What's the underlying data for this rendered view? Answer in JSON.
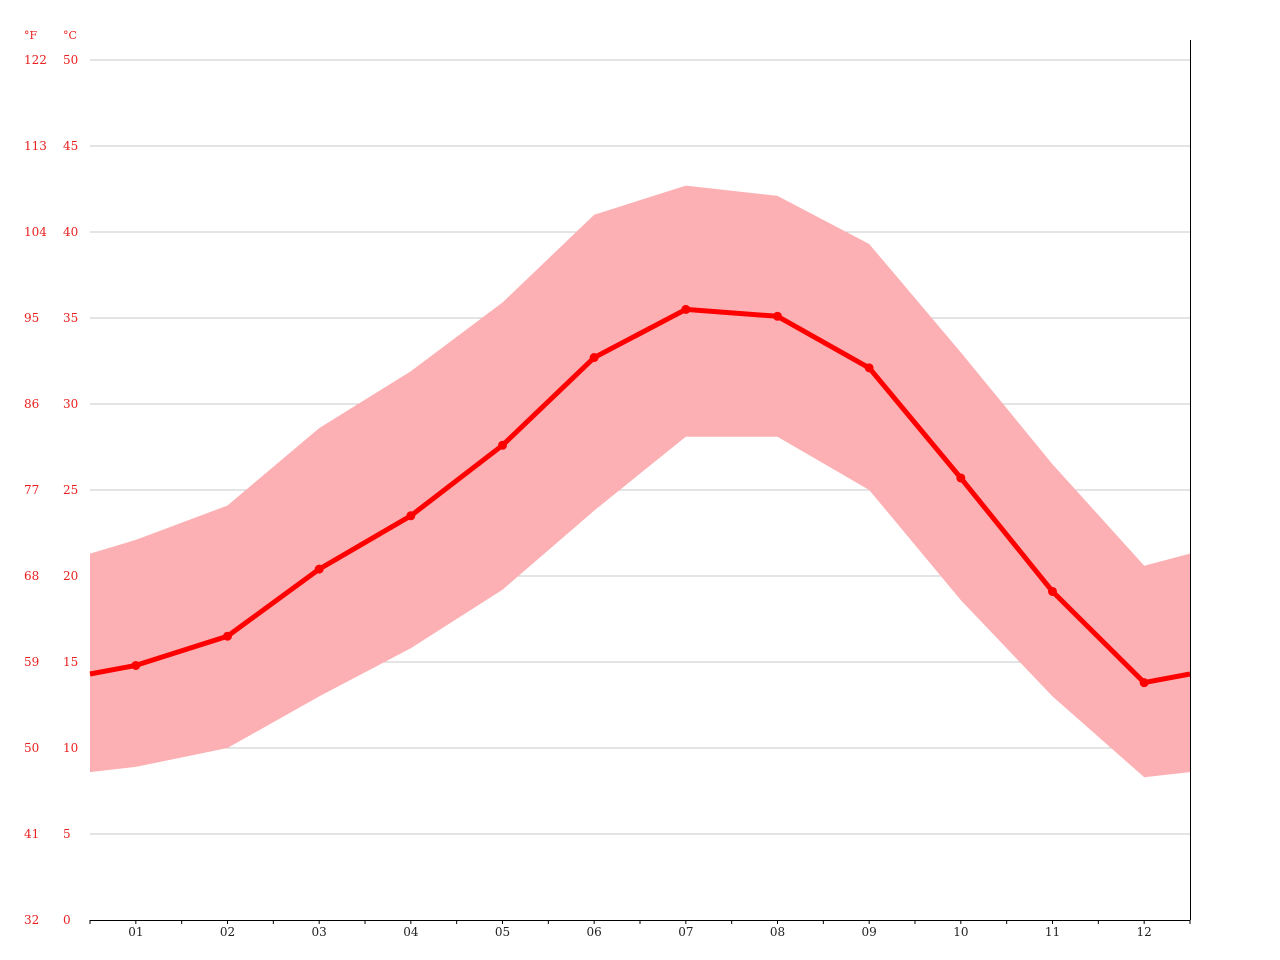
{
  "chart_data": {
    "type": "area",
    "title": "",
    "xlabel": "",
    "ylabel": "",
    "units": {
      "fahrenheit_label": "°F",
      "celsius_label": "°C"
    },
    "categories": [
      "01",
      "02",
      "03",
      "04",
      "05",
      "06",
      "07",
      "08",
      "09",
      "10",
      "11",
      "12"
    ],
    "y_ticks_celsius": [
      "0",
      "5",
      "10",
      "15",
      "20",
      "25",
      "30",
      "35",
      "40",
      "45",
      "50"
    ],
    "y_ticks_fahrenheit": [
      "32",
      "41",
      "50",
      "59",
      "68",
      "77",
      "86",
      "95",
      "104",
      "113",
      "122"
    ],
    "ylim": [
      0,
      50
    ],
    "grid": true,
    "series": [
      {
        "role": "mean",
        "values": [
          14.8,
          16.5,
          20.4,
          23.5,
          27.6,
          32.7,
          35.5,
          35.1,
          32.1,
          25.7,
          19.1,
          13.8
        ],
        "edge_values": [
          14.3,
          14.3
        ],
        "color": "#ff0000"
      },
      {
        "role": "max",
        "values": [
          22.1,
          24.1,
          28.6,
          31.9,
          35.9,
          41.0,
          42.7,
          42.1,
          39.3,
          33.0,
          26.5,
          20.6
        ],
        "edge_values": [
          21.3,
          21.3
        ],
        "color": "#fdb0b3"
      },
      {
        "role": "min",
        "values": [
          8.9,
          10.0,
          13.0,
          15.8,
          19.2,
          23.8,
          28.1,
          28.1,
          25.0,
          18.6,
          13.0,
          8.3
        ],
        "edge_values": [
          8.6,
          8.6
        ],
        "color": "#fdb0b3"
      }
    ],
    "colors": {
      "grid": "#c8c8c8",
      "axis": "#000000",
      "tick_labels_y": "#e8201f",
      "tick_labels_x": "#222222"
    }
  }
}
